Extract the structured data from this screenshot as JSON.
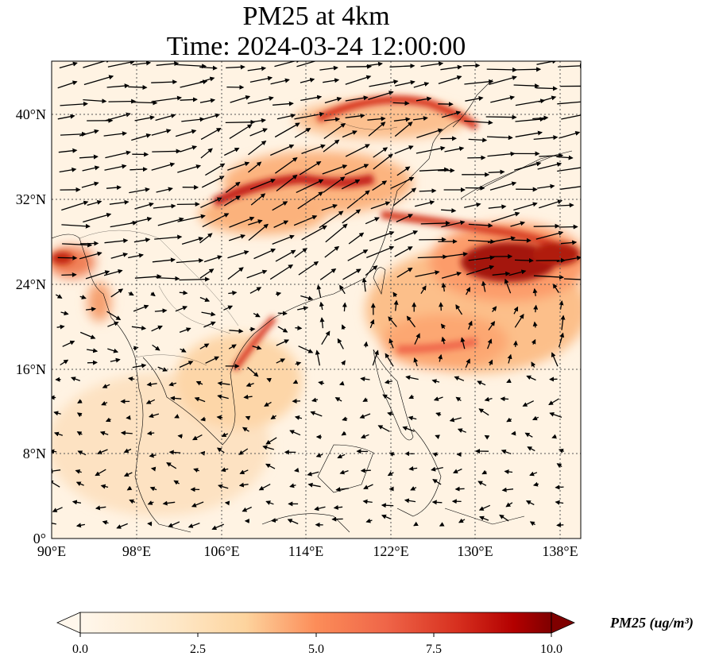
{
  "title": {
    "line1": "PM25 at 4km",
    "line2": "Time: 2024-03-24 12:00:00"
  },
  "map": {
    "projection": "PlateCarree",
    "extent": {
      "lon": [
        90,
        140
      ],
      "lat": [
        0,
        45
      ]
    },
    "lon_ticks": [
      "90°E",
      "98°E",
      "106°E",
      "114°E",
      "122°E",
      "130°E",
      "138°E"
    ],
    "lat_ticks": [
      "0°",
      "8°N",
      "16°N",
      "24°N",
      "32°N",
      "40°N"
    ],
    "gridlines": "dotted",
    "field": "PM25",
    "overlay": "wind vectors"
  },
  "colorbar": {
    "label": "PM25 (ug/m³)",
    "ticks": [
      "0.0",
      "2.5",
      "5.0",
      "7.5",
      "10.0"
    ],
    "range": [
      0,
      10
    ],
    "colormap": "OrRd",
    "extend": "both"
  },
  "colors": {
    "low": "#fff7ec",
    "mid_low": "#fdd49e",
    "mid": "#fc8d59",
    "high": "#d7301f",
    "max": "#7f0000"
  }
}
